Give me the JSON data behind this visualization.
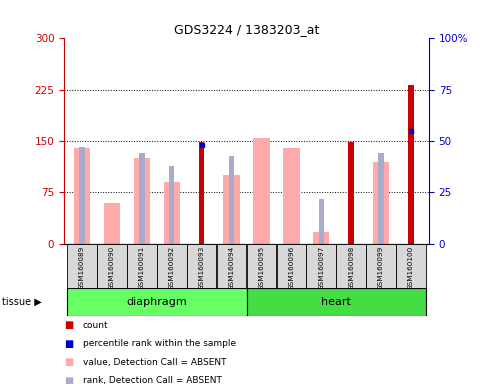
{
  "title": "GDS3224 / 1383203_at",
  "samples": [
    "GSM160089",
    "GSM160090",
    "GSM160091",
    "GSM160092",
    "GSM160093",
    "GSM160094",
    "GSM160095",
    "GSM160096",
    "GSM160097",
    "GSM160098",
    "GSM160099",
    "GSM160100"
  ],
  "value_absent": [
    140,
    60,
    125,
    90,
    0,
    100,
    155,
    140,
    18,
    0,
    120,
    0
  ],
  "rank_absent_pct": [
    47,
    0,
    44,
    38,
    0,
    43,
    0,
    0,
    22,
    0,
    44,
    0
  ],
  "count": [
    0,
    0,
    0,
    0,
    148,
    0,
    0,
    0,
    0,
    148,
    0,
    232
  ],
  "percentile_rank_pct": [
    0,
    0,
    0,
    0,
    48,
    0,
    0,
    0,
    0,
    0,
    0,
    55
  ],
  "groups": [
    {
      "label": "diaphragm",
      "start": 0,
      "end": 6,
      "color": "#66ff66"
    },
    {
      "label": "heart",
      "start": 6,
      "end": 12,
      "color": "#44dd44"
    }
  ],
  "ylim_left": [
    0,
    300
  ],
  "ylim_right": [
    0,
    100
  ],
  "yticks_left": [
    0,
    75,
    150,
    225,
    300
  ],
  "yticks_right": [
    0,
    25,
    50,
    75,
    100
  ],
  "color_count": "#cc0000",
  "color_percentile": "#0000cc",
  "color_value_absent": "#ffaaaa",
  "color_rank_absent": "#aaaacc",
  "left_axis_color": "#cc0000",
  "right_axis_color": "#0000cc",
  "fig_width": 4.93,
  "fig_height": 3.84
}
